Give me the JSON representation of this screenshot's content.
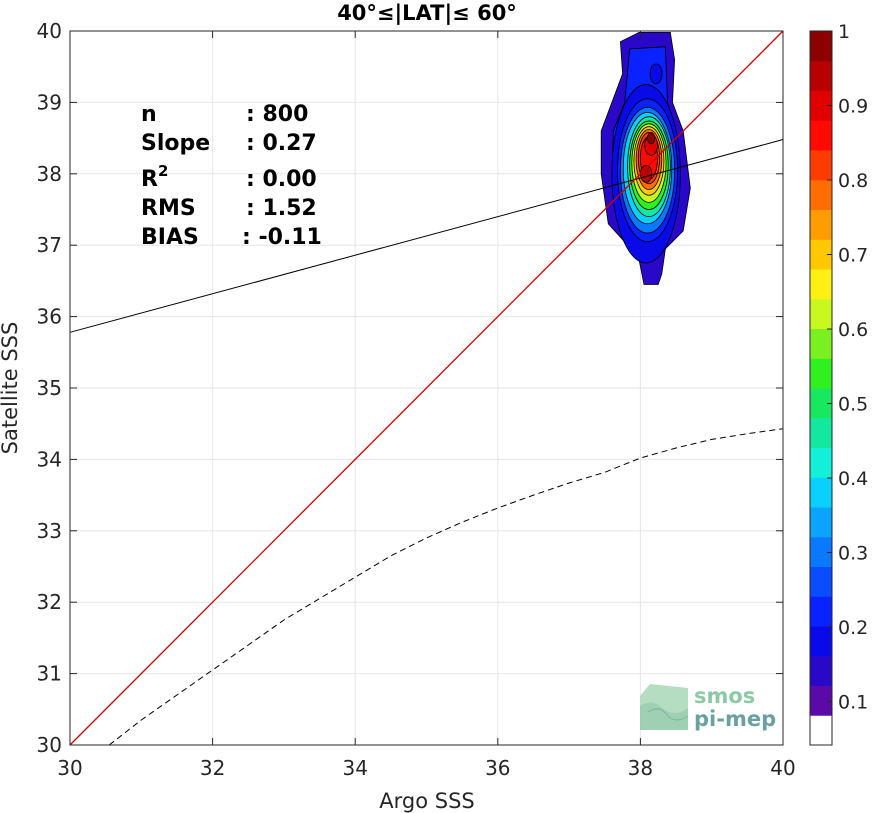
{
  "chart_data": {
    "type": "contour",
    "title": "40°≤|LAT|≤ 60°",
    "xlabel": "Argo SSS",
    "ylabel": "Satellite SSS",
    "xlim": [
      30,
      40
    ],
    "ylim": [
      30,
      40
    ],
    "xticks": [
      30,
      32,
      34,
      36,
      38,
      40
    ],
    "yticks": [
      30,
      31,
      32,
      33,
      34,
      35,
      36,
      37,
      38,
      39,
      40
    ],
    "grid": true,
    "stats": [
      {
        "label": "n",
        "value": ": 800"
      },
      {
        "label": "Slope",
        "value": ": 0.27"
      },
      {
        "label": "R",
        "sup": "2",
        "value": ": 0.00"
      },
      {
        "label": "RMS",
        "value": ": 1.52"
      },
      {
        "label": "BIAS",
        "value": ": -0.11"
      }
    ],
    "density_peak": {
      "x": 38.1,
      "y": 38.1
    },
    "contour_levels": [
      0.05,
      0.1,
      0.15,
      0.2,
      0.25,
      0.3,
      0.35,
      0.4,
      0.45,
      0.5,
      0.55,
      0.6,
      0.65,
      0.7,
      0.75,
      0.8,
      0.85,
      0.9,
      0.95,
      1.0
    ],
    "identity_line": {
      "x": [
        30,
        40
      ],
      "y": [
        30,
        40
      ],
      "color": "#cc0000"
    },
    "regression_line": {
      "x": [
        30,
        40
      ],
      "y": [
        35.78,
        38.48
      ],
      "color": "#000000"
    },
    "dashed_curve": {
      "x": [
        30.55,
        31,
        31.5,
        32,
        32.5,
        33,
        33.5,
        34,
        34.5,
        35,
        35.5,
        36,
        36.5,
        37,
        37.5,
        38,
        38.5,
        39,
        39.5,
        40
      ],
      "y": [
        30.0,
        30.35,
        30.7,
        31.05,
        31.4,
        31.75,
        32.05,
        32.35,
        32.65,
        32.9,
        33.12,
        33.32,
        33.5,
        33.67,
        33.82,
        34.02,
        34.16,
        34.28,
        34.36,
        34.43
      ]
    },
    "colorbar": {
      "ticks": [
        0.1,
        0.2,
        0.3,
        0.4,
        0.5,
        0.6,
        0.7,
        0.8,
        0.9,
        1
      ],
      "colors": [
        "#ffffff",
        "#5b0aa8",
        "#2a08c8",
        "#0a0ae8",
        "#0a22ff",
        "#0a4cff",
        "#0a78ff",
        "#0aa4ff",
        "#0ad0ff",
        "#14f0d8",
        "#14e8a0",
        "#18e860",
        "#30f020",
        "#7af020",
        "#c8f820",
        "#fff014",
        "#ffc800",
        "#ff9c00",
        "#ff6c00",
        "#ff3c00",
        "#ff0a00",
        "#e00000",
        "#b80000",
        "#8c0000"
      ]
    }
  },
  "logo": {
    "line1": "smos",
    "line2": "pi-mep"
  }
}
